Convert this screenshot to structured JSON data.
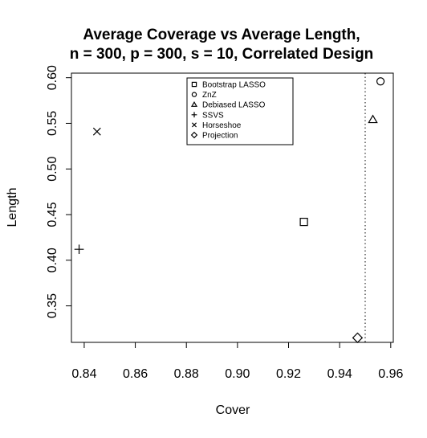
{
  "chart_data": {
    "type": "scatter",
    "title": "Average Coverage vs Average Length,",
    "subtitle": "n = 300, p = 300, s = 10, Correlated Design",
    "xlabel": "Cover",
    "ylabel": "Length",
    "xlim": [
      0.835,
      0.961
    ],
    "ylim": [
      0.31,
      0.605
    ],
    "xticks": [
      "0.84",
      "0.86",
      "0.88",
      "0.90",
      "0.92",
      "0.94",
      "0.96"
    ],
    "yticks": [
      "0.35",
      "0.40",
      "0.45",
      "0.50",
      "0.55",
      "0.60"
    ],
    "reference_line": {
      "x": 0.95,
      "style": "dotted"
    },
    "grid": false,
    "legend_position": "top-right",
    "series": [
      {
        "name": "Bootstrap LASSO",
        "marker": "square",
        "x": 0.926,
        "y": 0.442
      },
      {
        "name": "ZnZ",
        "marker": "circle",
        "x": 0.956,
        "y": 0.596
      },
      {
        "name": "Debiased LASSO",
        "marker": "triangle",
        "x": 0.953,
        "y": 0.554
      },
      {
        "name": "SSVS",
        "marker": "plus",
        "x": 0.838,
        "y": 0.412
      },
      {
        "name": "Horseshoe",
        "marker": "cross",
        "x": 0.845,
        "y": 0.541
      },
      {
        "name": "Projection",
        "marker": "diamond",
        "x": 0.947,
        "y": 0.315
      }
    ]
  }
}
